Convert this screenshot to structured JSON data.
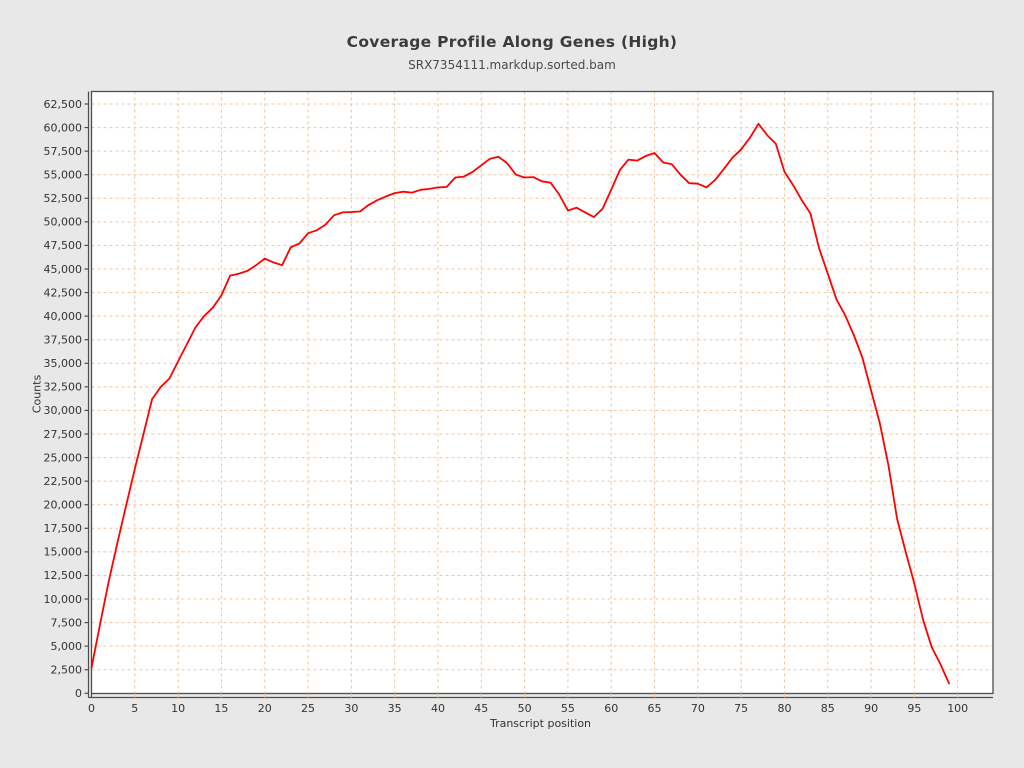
{
  "page": {
    "background_color": "#e8e8e8"
  },
  "chart": {
    "title": "Coverage Profile Along Genes (High)",
    "subtitle": "SRX7354111.markdup.sorted.bam",
    "x_axis_label": "Transcript position",
    "y_axis_label": "Counts"
  },
  "chart_data": {
    "type": "line",
    "title": "Coverage Profile Along Genes (High)",
    "subtitle": "SRX7354111.markdup.sorted.bam",
    "xlabel": "Transcript position",
    "ylabel": "Counts",
    "xlim": [
      0,
      104
    ],
    "ylim": [
      0,
      62500
    ],
    "x_tick_step": 5,
    "x_tick_max": 100,
    "y_tick_step": 2500,
    "grid": true,
    "grid_color": "#f2c49b",
    "plot_background": "#ffffff",
    "frame_color": "#4d4d4d",
    "legend_position": "none",
    "x": [
      0,
      1,
      2,
      3,
      4,
      5,
      6,
      7,
      8,
      9,
      10,
      11,
      12,
      13,
      14,
      15,
      16,
      17,
      18,
      19,
      20,
      21,
      22,
      23,
      24,
      25,
      26,
      27,
      28,
      29,
      30,
      31,
      32,
      33,
      34,
      35,
      36,
      37,
      38,
      39,
      40,
      41,
      42,
      43,
      44,
      45,
      46,
      47,
      48,
      49,
      50,
      51,
      52,
      53,
      54,
      55,
      56,
      57,
      58,
      59,
      60,
      61,
      62,
      63,
      64,
      65,
      66,
      67,
      68,
      69,
      70,
      71,
      72,
      73,
      74,
      75,
      76,
      77,
      78,
      79,
      80,
      81,
      82,
      83,
      84,
      85,
      86,
      87,
      88,
      89,
      90,
      91,
      92,
      93,
      94,
      95,
      96,
      97,
      98,
      99
    ],
    "series": [
      {
        "name": "SRX7354111.markdup.sorted.bam",
        "color": "#ff0000",
        "values": [
          2700,
          7400,
          11900,
          16000,
          19900,
          23800,
          27500,
          31200,
          32500,
          33400,
          35200,
          37000,
          38800,
          40000,
          40900,
          42200,
          44300,
          44500,
          44800,
          45400,
          46100,
          45700,
          45400,
          47300,
          47700,
          48800,
          49100,
          49700,
          50700,
          51000,
          51050,
          51100,
          51800,
          52300,
          52700,
          53050,
          53200,
          53100,
          53400,
          53500,
          53650,
          53700,
          54700,
          54800,
          55300,
          56000,
          56700,
          56900,
          56200,
          55000,
          54700,
          54750,
          54300,
          54150,
          52900,
          51200,
          51500,
          51000,
          50500,
          51400,
          53400,
          55500,
          56600,
          56500,
          57000,
          57300,
          56300,
          56100,
          55000,
          54100,
          54050,
          53650,
          54450,
          55600,
          56800,
          57700,
          58900,
          60400,
          59200,
          58300,
          55300,
          53900,
          52300,
          50900,
          47200,
          44500,
          41800,
          40100,
          38000,
          35600,
          32100,
          28700,
          24200,
          18500,
          15000,
          11600,
          7800,
          4900,
          3100,
          1050
        ]
      }
    ]
  }
}
